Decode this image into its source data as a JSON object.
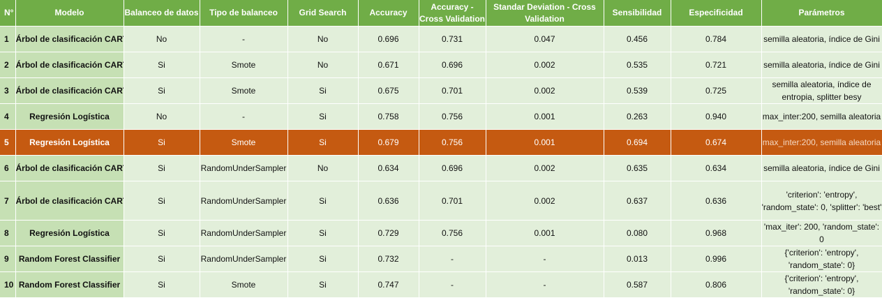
{
  "headers": {
    "n": "N°",
    "modelo": "Modelo",
    "balanceo": "Balanceo de datos",
    "tipo": "Tipo de balanceo",
    "grid": "Grid Search",
    "accuracy": "Accuracy",
    "accuracy_cv": "Accuracy - Cross Validation",
    "std_cv": "Standar Deviation - Cross Validation",
    "sensibilidad": "Sensibilidad",
    "especificidad": "Especificidad",
    "parametros": "Parámetros"
  },
  "rows": [
    {
      "n": "1",
      "modelo": "Árbol de clasificación CART",
      "balanceo": "No",
      "tipo": "-",
      "grid": "No",
      "accuracy": "0.696",
      "accuracy_cv": "0.731",
      "std_cv": "0.047",
      "sensibilidad": "0.456",
      "especificidad": "0.784",
      "parametros": "semilla aleatoria, índice de Gini"
    },
    {
      "n": "2",
      "modelo": "Árbol de clasificación CART",
      "balanceo": "Si",
      "tipo": "Smote",
      "grid": "No",
      "accuracy": "0.671",
      "accuracy_cv": "0.696",
      "std_cv": "0.002",
      "sensibilidad": "0.535",
      "especificidad": "0.721",
      "parametros": "semilla aleatoria, índice de Gini"
    },
    {
      "n": "3",
      "modelo": "Árbol de clasificación CART",
      "balanceo": "Si",
      "tipo": "Smote",
      "grid": "Si",
      "accuracy": "0.675",
      "accuracy_cv": "0.701",
      "std_cv": "0.002",
      "sensibilidad": "0.539",
      "especificidad": "0.725",
      "parametros": "semilla aleatoria, índice de entropia, splitter besy"
    },
    {
      "n": "4",
      "modelo": "Regresión Logística",
      "balanceo": "No",
      "tipo": "-",
      "grid": "Si",
      "accuracy": "0.758",
      "accuracy_cv": "0.756",
      "std_cv": "0.001",
      "sensibilidad": "0.263",
      "especificidad": "0.940",
      "parametros": "max_inter:200, semilla aleatoria"
    },
    {
      "n": "5",
      "modelo": "Regresión Logística",
      "balanceo": "Si",
      "tipo": "Smote",
      "grid": "Si",
      "accuracy": "0.679",
      "accuracy_cv": "0.756",
      "std_cv": "0.001",
      "sensibilidad": "0.694",
      "especificidad": "0.674",
      "parametros": "max_inter:200, semilla aleatoria",
      "highlight": true
    },
    {
      "n": "6",
      "modelo": "Árbol de clasificación CART",
      "balanceo": "Si",
      "tipo": "RandomUnderSampler",
      "grid": "No",
      "accuracy": "0.634",
      "accuracy_cv": "0.696",
      "std_cv": "0.002",
      "sensibilidad": "0.635",
      "especificidad": "0.634",
      "parametros": "semilla aleatoria, índice de Gini"
    },
    {
      "n": "7",
      "modelo": "Árbol de clasificación CART",
      "balanceo": "Si",
      "tipo": "RandomUnderSampler",
      "grid": "Si",
      "accuracy": "0.636",
      "accuracy_cv": "0.701",
      "std_cv": "0.002",
      "sensibilidad": "0.637",
      "especificidad": "0.636",
      "parametros": "'criterion': 'entropy', 'random_state': 0, 'splitter': 'best'"
    },
    {
      "n": "8",
      "modelo": "Regresión Logística",
      "balanceo": "Si",
      "tipo": "RandomUnderSampler",
      "grid": "Si",
      "accuracy": "0.729",
      "accuracy_cv": "0.756",
      "std_cv": "0.001",
      "sensibilidad": "0.080",
      "especificidad": "0.968",
      "parametros": "'max_iter': 200, 'random_state': 0"
    },
    {
      "n": "9",
      "modelo": "Random Forest Classifier",
      "balanceo": "Si",
      "tipo": "RandomUnderSampler",
      "grid": "Si",
      "accuracy": "0.732",
      "accuracy_cv": "-",
      "std_cv": "-",
      "sensibilidad": "0.013",
      "especificidad": "0.996",
      "parametros": "{'criterion': 'entropy', 'random_state': 0}"
    },
    {
      "n": "10",
      "modelo": "Random Forest Classifier",
      "balanceo": "Si",
      "tipo": "Smote",
      "grid": "Si",
      "accuracy": "0.747",
      "accuracy_cv": "-",
      "std_cv": "-",
      "sensibilidad": "0.587",
      "especificidad": "0.806",
      "parametros": "{'criterion': 'entropy', 'random_state': 0}"
    }
  ]
}
